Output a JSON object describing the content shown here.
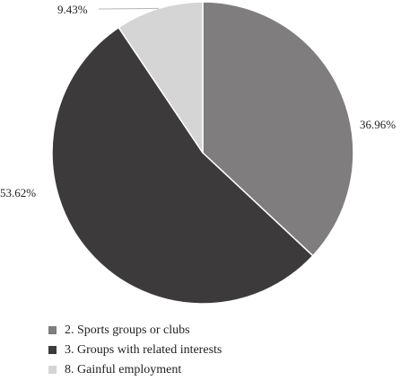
{
  "chart_data": {
    "type": "pie",
    "title": "",
    "slices": [
      {
        "label": "2. Sports groups or clubs",
        "value": 36.96,
        "value_label": "36.96%",
        "color": "#7f7d7d"
      },
      {
        "label": "3. Groups with related interests",
        "value": 53.62,
        "value_label": "53.62%",
        "color": "#3c3a3a"
      },
      {
        "label": "8. Gainful employment",
        "value": 9.43,
        "value_label": "9.43%",
        "color": "#d6d5d5"
      }
    ],
    "start_angle": "12 o'clock",
    "direction": "clockwise",
    "legend_position": "bottom-left",
    "slice_border_color": "#ffffff"
  }
}
